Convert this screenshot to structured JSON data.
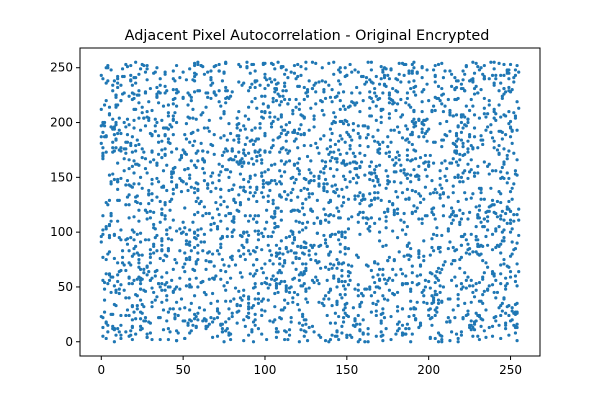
{
  "chart_data": {
    "type": "scatter",
    "title": "Adjacent Pixel Autocorrelation - Original Encrypted",
    "xlabel": "",
    "ylabel": "",
    "xlim": [
      -13,
      268
    ],
    "ylim": [
      -13,
      268
    ],
    "xticks": [
      0,
      50,
      100,
      150,
      200,
      250
    ],
    "yticks": [
      0,
      50,
      100,
      150,
      200,
      250
    ],
    "xtick_labels": [
      "0",
      "50",
      "100",
      "150",
      "200",
      "250"
    ],
    "ytick_labels": [
      "0",
      "50",
      "100",
      "150",
      "200",
      "250"
    ],
    "grid": false,
    "legend": false,
    "point_color": "#1f77b4",
    "point_count": 3000,
    "value_range": [
      0,
      255
    ],
    "distribution": "uniform random over 0–255 on both axes (no visible correlation)"
  }
}
